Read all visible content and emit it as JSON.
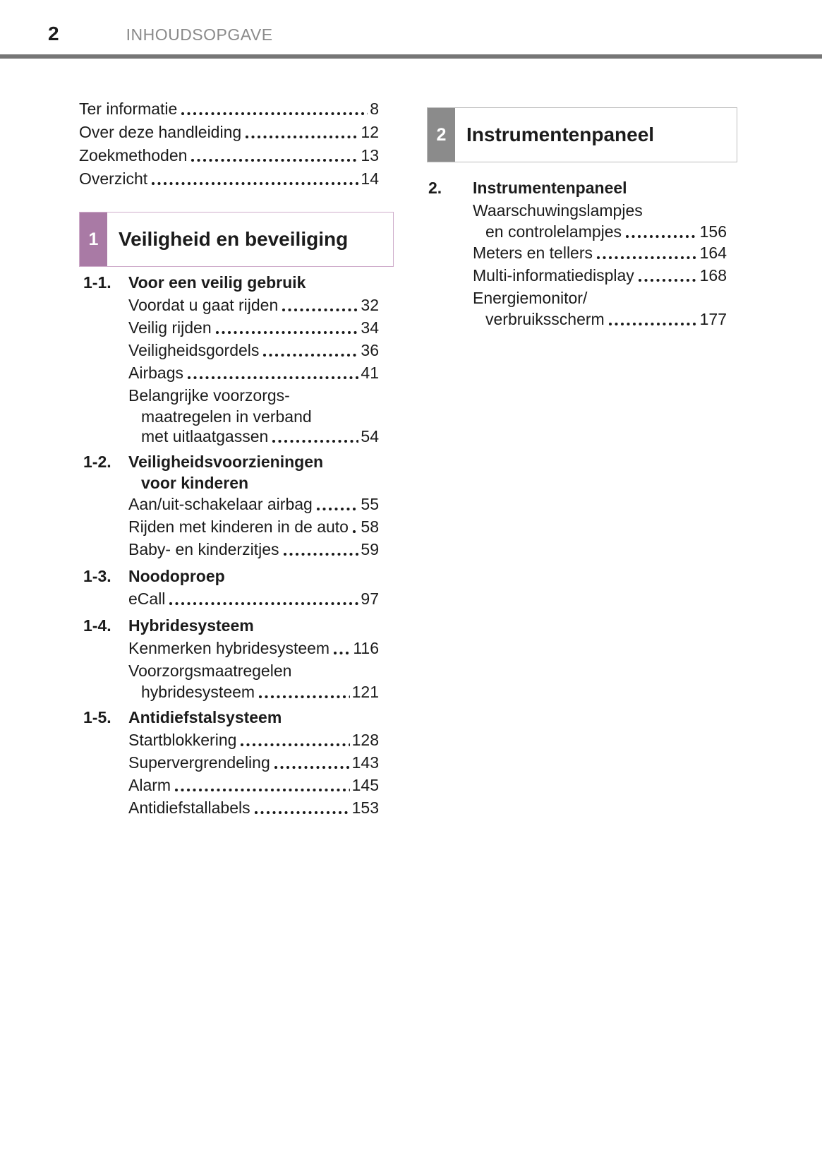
{
  "header": {
    "page_number": "2",
    "title": "INHOUDSOPGAVE",
    "rule_color": "#767676"
  },
  "colors": {
    "text": "#1b1b1b",
    "section1_accent": "#a97aa5",
    "section1_border": "#cfadcb",
    "section2_accent": "#8b8b8b",
    "section2_border": "#bdbdbd"
  },
  "left": {
    "intro": [
      {
        "label": "Ter informatie",
        "page": "8"
      },
      {
        "label": "Over deze handleiding",
        "page": "12"
      },
      {
        "label": "Zoekmethoden",
        "page": "13"
      },
      {
        "label": "Overzicht",
        "page": "14"
      }
    ],
    "box": {
      "number": "1",
      "title": "Veiligheid en beveiliging"
    },
    "sections": [
      {
        "num": "1-1.",
        "title_lines": [
          "Voor een veilig gebruik"
        ],
        "items": [
          {
            "label": "Voordat u gaat rijden",
            "page": "32"
          },
          {
            "label": "Veilig rijden",
            "page": "34"
          },
          {
            "label": "Veiligheidsgordels",
            "page": "36"
          },
          {
            "label": "Airbags",
            "page": "41"
          },
          {
            "lines": [
              "Belangrijke voorzorgs-",
              "maatregelen in verband"
            ],
            "label": "met uitlaatgassen",
            "page": "54"
          }
        ]
      },
      {
        "num": "1-2.",
        "title_lines": [
          "Veiligheidsvoorzieningen",
          "voor kinderen"
        ],
        "items": [
          {
            "label": "Aan/uit-schakelaar airbag",
            "page": "55"
          },
          {
            "label": "Rijden met kinderen in de auto",
            "page": "58"
          },
          {
            "label": "Baby- en kinderzitjes",
            "page": "59"
          }
        ]
      },
      {
        "num": "1-3.",
        "title_lines": [
          "Noodoproep"
        ],
        "items": [
          {
            "label": "eCall",
            "page": "97"
          }
        ]
      },
      {
        "num": "1-4.",
        "title_lines": [
          "Hybridesysteem"
        ],
        "items": [
          {
            "label": "Kenmerken hybridesysteem",
            "page": "116"
          },
          {
            "lines": [
              "Voorzorgsmaatregelen"
            ],
            "label": "hybridesysteem",
            "page": "121"
          }
        ]
      },
      {
        "num": "1-5.",
        "title_lines": [
          "Antidiefstalsysteem"
        ],
        "items": [
          {
            "label": "Startblokkering",
            "page": "128"
          },
          {
            "label": "Supervergrendeling",
            "page": "143"
          },
          {
            "label": "Alarm",
            "page": "145"
          },
          {
            "label": "Antidiefstallabels",
            "page": "153"
          }
        ]
      }
    ]
  },
  "right": {
    "box": {
      "number": "2",
      "title": "Instrumentenpaneel"
    },
    "sections": [
      {
        "num": "2.",
        "title_lines": [
          "Instrumentenpaneel"
        ],
        "items": [
          {
            "lines": [
              "Waarschuwingslampjes"
            ],
            "label": "en controlelampjes",
            "page": "156"
          },
          {
            "label": "Meters en tellers",
            "page": "164"
          },
          {
            "label": "Multi-informatiedisplay",
            "page": "168"
          },
          {
            "lines": [
              "Energiemonitor/"
            ],
            "label": "verbruiksscherm",
            "page": "177"
          }
        ]
      }
    ]
  }
}
